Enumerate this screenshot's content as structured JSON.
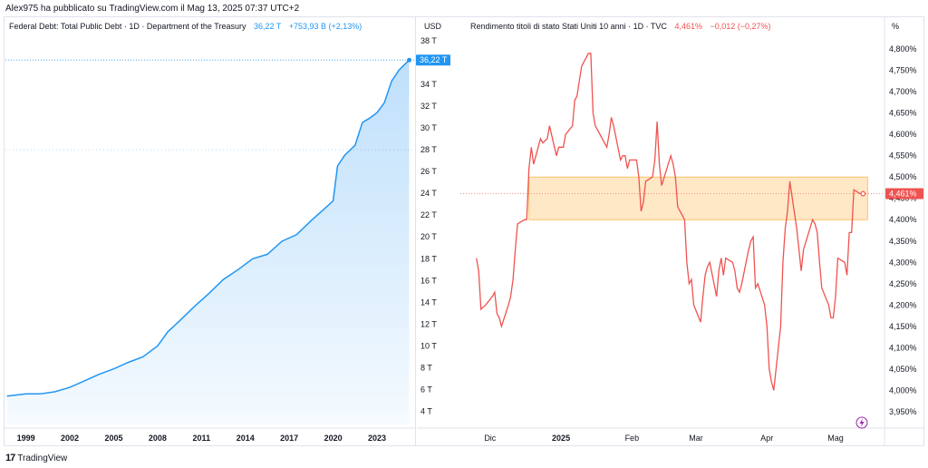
{
  "attribution": "Alex975 ha pubblicato su TradingView.com il Mag 13, 2025 07:37 UTC+2",
  "footer": {
    "logo": "17",
    "name": "TradingView"
  },
  "colors": {
    "debt_line": "#2196f3",
    "debt_fill": "#bbdefb",
    "yield_line": "#ef5350",
    "zone_fill": "#ffe0b2",
    "zone_border": "#ffb74d",
    "price_tag_debt": "#2196f3",
    "price_tag_yield": "#ef5350",
    "icon_purple": "#9c27b0"
  },
  "chart_data": [
    {
      "type": "area",
      "legend": {
        "title": "Federal Debt: Total Public Debt · 1D · Department of the Treasury",
        "value": "36,22 T",
        "change": "+753,93 B (+2,13%)"
      },
      "unit_label": "USD",
      "last_value_label": "36,22 T",
      "x_ticks": [
        "1999",
        "2002",
        "2005",
        "2008",
        "2011",
        "2014",
        "2017",
        "2020",
        "2023"
      ],
      "y_ticks": [
        "4 T",
        "6 T",
        "8 T",
        "10 T",
        "12 T",
        "14 T",
        "16 T",
        "18 T",
        "20 T",
        "22 T",
        "24 T",
        "26 T",
        "28 T",
        "30 T",
        "32 T",
        "34 T",
        "38 T"
      ],
      "ylim": [
        2.8,
        38.4
      ],
      "xlim": [
        1997.6,
        2025.6
      ],
      "x": [
        1997.7,
        1999.0,
        2000.0,
        2001.0,
        2002.0,
        2003.0,
        2004.0,
        2005.0,
        2006.0,
        2007.0,
        2008.0,
        2008.7,
        2009.5,
        2010.5,
        2011.5,
        2012.5,
        2013.5,
        2014.5,
        2015.5,
        2016.5,
        2017.5,
        2018.5,
        2019.5,
        2020.0,
        2020.3,
        2020.8,
        2021.5,
        2022.0,
        2022.5,
        2023.0,
        2023.5,
        2024.0,
        2024.5,
        2025.2
      ],
      "y": [
        5.4,
        5.6,
        5.6,
        5.8,
        6.2,
        6.8,
        7.4,
        7.9,
        8.5,
        9.0,
        10.0,
        11.3,
        12.3,
        13.6,
        14.8,
        16.1,
        17.0,
        18.0,
        18.4,
        19.6,
        20.2,
        21.5,
        22.7,
        23.3,
        26.5,
        27.5,
        28.4,
        30.5,
        30.9,
        31.4,
        32.3,
        34.3,
        35.3,
        36.22
      ]
    },
    {
      "type": "line",
      "legend": {
        "title": "Rendimento titoli di stato Stati Uniti 10 anni · 1D · TVC",
        "value": "4,461%",
        "change": "−0,012 (−0,27%)"
      },
      "unit_label": "%",
      "last_value_label": "4,461%",
      "x_ticks": [
        "Dic",
        "2025",
        "Feb",
        "Mar",
        "Apr",
        "Mag"
      ],
      "y_ticks": [
        "3,950%",
        "4,000%",
        "4,050%",
        "4,100%",
        "4,150%",
        "4,200%",
        "4,250%",
        "4,300%",
        "4,350%",
        "4,400%",
        "4,450%",
        "4,500%",
        "4,550%",
        "4,600%",
        "4,650%",
        "4,700%",
        "4,750%",
        "4,800%"
      ],
      "ylim": [
        3.92,
        4.83
      ],
      "highlight_zone": {
        "from_date": "2024-12-18",
        "to_date": "2025-05-15",
        "low": 4.4,
        "high": 4.5
      },
      "x": [
        "2024-11-25",
        "2024-11-26",
        "2024-11-27",
        "2024-11-29",
        "2024-12-02",
        "2024-12-03",
        "2024-12-04",
        "2024-12-05",
        "2024-12-06",
        "2024-12-09",
        "2024-12-10",
        "2024-12-11",
        "2024-12-12",
        "2024-12-13",
        "2024-12-16",
        "2024-12-17",
        "2024-12-18",
        "2024-12-19",
        "2024-12-20",
        "2024-12-23",
        "2024-12-24",
        "2024-12-26",
        "2024-12-27",
        "2024-12-30",
        "2024-12-31",
        "2025-01-02",
        "2025-01-03",
        "2025-01-06",
        "2025-01-07",
        "2025-01-08",
        "2025-01-10",
        "2025-01-13",
        "2025-01-14",
        "2025-01-15",
        "2025-01-16",
        "2025-01-17",
        "2025-01-21",
        "2025-01-22",
        "2025-01-23",
        "2025-01-24",
        "2025-01-27",
        "2025-01-28",
        "2025-01-29",
        "2025-01-30",
        "2025-01-31",
        "2025-02-03",
        "2025-02-04",
        "2025-02-05",
        "2025-02-06",
        "2025-02-07",
        "2025-02-10",
        "2025-02-11",
        "2025-02-12",
        "2025-02-13",
        "2025-02-14",
        "2025-02-18",
        "2025-02-19",
        "2025-02-20",
        "2025-02-21",
        "2025-02-24",
        "2025-02-25",
        "2025-02-26",
        "2025-02-27",
        "2025-02-28",
        "2025-03-03",
        "2025-03-04",
        "2025-03-05",
        "2025-03-06",
        "2025-03-07",
        "2025-03-10",
        "2025-03-11",
        "2025-03-12",
        "2025-03-13",
        "2025-03-14",
        "2025-03-17",
        "2025-03-18",
        "2025-03-19",
        "2025-03-20",
        "2025-03-21",
        "2025-03-24",
        "2025-03-25",
        "2025-03-26",
        "2025-03-27",
        "2025-03-28",
        "2025-03-31",
        "2025-04-01",
        "2025-04-02",
        "2025-04-03",
        "2025-04-04",
        "2025-04-07",
        "2025-04-08",
        "2025-04-09",
        "2025-04-10",
        "2025-04-11",
        "2025-04-14",
        "2025-04-15",
        "2025-04-16",
        "2025-04-17",
        "2025-04-21",
        "2025-04-22",
        "2025-04-23",
        "2025-04-24",
        "2025-04-25",
        "2025-04-28",
        "2025-04-29",
        "2025-04-30",
        "2025-05-01",
        "2025-05-02",
        "2025-05-05",
        "2025-05-06",
        "2025-05-07",
        "2025-05-08",
        "2025-05-09",
        "2025-05-12",
        "2025-05-13"
      ],
      "y": [
        4.31,
        4.28,
        4.19,
        4.2,
        4.22,
        4.23,
        4.18,
        4.17,
        4.15,
        4.2,
        4.22,
        4.26,
        4.33,
        4.39,
        4.4,
        4.4,
        4.52,
        4.57,
        4.53,
        4.59,
        4.58,
        4.59,
        4.62,
        4.55,
        4.57,
        4.57,
        4.6,
        4.62,
        4.68,
        4.69,
        4.76,
        4.79,
        4.79,
        4.65,
        4.62,
        4.61,
        4.57,
        4.6,
        4.64,
        4.62,
        4.54,
        4.55,
        4.55,
        4.52,
        4.54,
        4.54,
        4.5,
        4.42,
        4.44,
        4.49,
        4.5,
        4.54,
        4.63,
        4.53,
        4.48,
        4.55,
        4.53,
        4.5,
        4.43,
        4.4,
        4.3,
        4.25,
        4.26,
        4.2,
        4.16,
        4.22,
        4.27,
        4.29,
        4.3,
        4.22,
        4.28,
        4.31,
        4.27,
        4.31,
        4.3,
        4.28,
        4.24,
        4.23,
        4.25,
        4.33,
        4.35,
        4.36,
        4.24,
        4.25,
        4.2,
        4.15,
        4.05,
        4.02,
        4.0,
        4.15,
        4.3,
        4.38,
        4.42,
        4.49,
        4.38,
        4.33,
        4.28,
        4.33,
        4.4,
        4.39,
        4.37,
        4.3,
        4.24,
        4.2,
        4.17,
        4.17,
        4.22,
        4.31,
        4.3,
        4.27,
        4.37,
        4.37,
        4.47,
        4.46,
        4.461
      ]
    }
  ]
}
